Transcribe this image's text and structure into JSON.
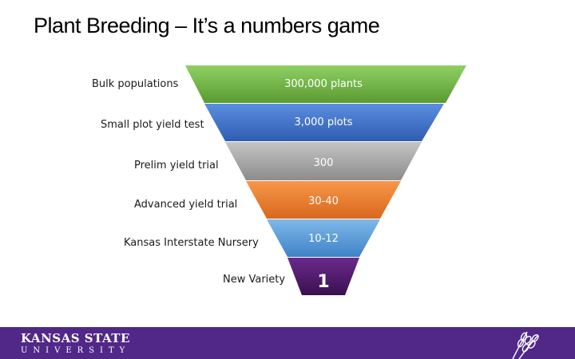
{
  "title": "Plant Breeding – It’s a numbers game",
  "stages": [
    {
      "label": "Bulk populations",
      "value": "300,000 plants",
      "color": "#70ad47"
    },
    {
      "label": "Small plot yield test",
      "value": "3,000 plots",
      "color": "#4472c4"
    },
    {
      "label": "Prelim yield trial",
      "value": "300",
      "color": "#a5a5a5"
    },
    {
      "label": "Advanced yield trial",
      "value": "30-40",
      "color": "#ed7d31"
    },
    {
      "label": "Kansas Interstate Nursery",
      "value": "10-12",
      "color": "#5b9bd5"
    },
    {
      "label": "New Variety",
      "value": "1",
      "color": "#4b1a66"
    }
  ],
  "footer": {
    "logo_line1": "KANSAS STATE",
    "logo_line2": "UNIVERSITY",
    "bar_color": "#512888"
  }
}
